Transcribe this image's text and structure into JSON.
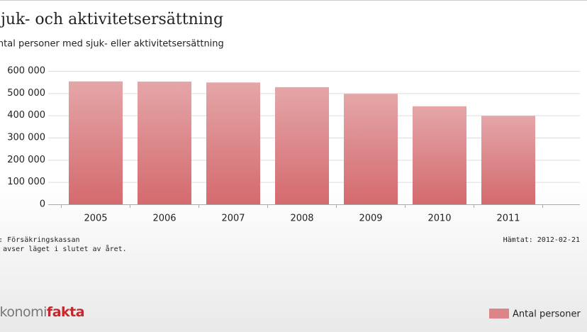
{
  "chart_data": {
    "type": "bar",
    "title": "Sjuk- och aktivitetsersättning",
    "subtitle": "Antal personer med sjuk- eller aktivitetsersättning",
    "categories": [
      "2005",
      "2006",
      "2007",
      "2008",
      "2009",
      "2010",
      "2011"
    ],
    "series": [
      {
        "name": "Antal personer",
        "color": "#dc8588",
        "values": [
          553000,
          552000,
          548000,
          527000,
          497000,
          441000,
          398000
        ]
      }
    ],
    "ylim": [
      0,
      600000
    ],
    "yticks": [
      0,
      {
        "value": 100000,
        "label": "100 000"
      },
      {
        "value": 200000,
        "label": "200 000"
      },
      {
        "value": 300000,
        "label": "300 000"
      },
      {
        "value": 400000,
        "label": "400 000"
      },
      {
        "value": 500000,
        "label": "500 000"
      },
      {
        "value": 600000,
        "label": "600 000"
      }
    ],
    "grid": true,
    "source": "Källa: Försäkringskassan",
    "note": "Data avser läget i slutet av året.",
    "retrieved": "Hämtat: 2012-02-21",
    "logo": [
      "Ekonomi",
      "fakta"
    ]
  }
}
